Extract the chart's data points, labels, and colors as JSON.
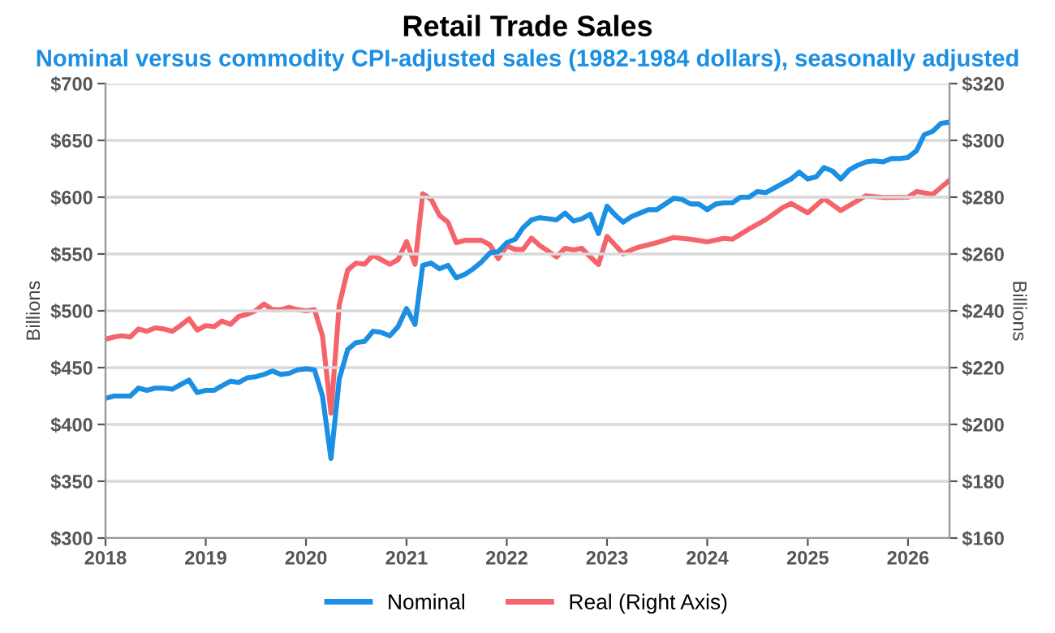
{
  "chart_data": {
    "type": "line",
    "title": "Retail Trade Sales",
    "subtitle": "Nominal versus commodity CPI-adjusted sales (1982-1984 dollars), seasonally adjusted",
    "ylabel": "Billions",
    "y2label": "Billions",
    "xlim": [
      "2018-01",
      "2026-06"
    ],
    "xticks": [
      {
        "value": "2018-01",
        "label": "2018"
      },
      {
        "value": "2019-01",
        "label": "2019"
      },
      {
        "value": "2020-01",
        "label": "2020"
      },
      {
        "value": "2021-01",
        "label": "2021"
      },
      {
        "value": "2022-01",
        "label": "2022"
      },
      {
        "value": "2023-01",
        "label": "2023"
      },
      {
        "value": "2024-01",
        "label": "2024"
      },
      {
        "value": "2025-01",
        "label": "2025"
      },
      {
        "value": "2026-01",
        "label": "2026"
      }
    ],
    "ylim": [
      300,
      700
    ],
    "yticks": [
      {
        "value": 300,
        "label": "$300"
      },
      {
        "value": 350,
        "label": "$350"
      },
      {
        "value": 400,
        "label": "$400"
      },
      {
        "value": 450,
        "label": "$450"
      },
      {
        "value": 500,
        "label": "$500"
      },
      {
        "value": 550,
        "label": "$550"
      },
      {
        "value": 600,
        "label": "$600"
      },
      {
        "value": 650,
        "label": "$650"
      },
      {
        "value": 700,
        "label": "$700"
      }
    ],
    "y2lim": [
      160,
      320
    ],
    "y2ticks": [
      {
        "value": 160,
        "label": "$160"
      },
      {
        "value": 180,
        "label": "$180"
      },
      {
        "value": 200,
        "label": "$200"
      },
      {
        "value": 220,
        "label": "$220"
      },
      {
        "value": 240,
        "label": "$240"
      },
      {
        "value": 260,
        "label": "$260"
      },
      {
        "value": 280,
        "label": "$280"
      },
      {
        "value": 300,
        "label": "$300"
      },
      {
        "value": 320,
        "label": "$320"
      }
    ],
    "grid": "y",
    "legend": "bottom",
    "line_style": "solid",
    "marker": "none",
    "series": [
      {
        "name": "Nominal",
        "color": "#1a8fe3",
        "x": [
          "2018-01",
          "2018-02",
          "2018-03",
          "2018-04",
          "2018-05",
          "2018-06",
          "2018-07",
          "2018-08",
          "2018-09",
          "2018-10",
          "2018-11",
          "2018-12",
          "2019-01",
          "2019-02",
          "2019-03",
          "2019-04",
          "2019-05",
          "2019-06",
          "2019-07",
          "2019-08",
          "2019-09",
          "2019-10",
          "2019-11",
          "2019-12",
          "2020-01",
          "2020-02",
          "2020-03",
          "2020-04",
          "2020-05",
          "2020-06",
          "2020-07",
          "2020-08",
          "2020-09",
          "2020-10",
          "2020-11",
          "2020-12",
          "2021-01",
          "2021-02",
          "2021-03",
          "2021-04",
          "2021-05",
          "2021-06",
          "2021-07",
          "2021-08",
          "2021-09",
          "2021-10",
          "2021-11",
          "2021-12",
          "2022-01",
          "2022-02",
          "2022-03",
          "2022-04",
          "2022-05",
          "2022-06",
          "2022-07",
          "2022-08",
          "2022-09",
          "2022-10",
          "2022-11",
          "2022-12",
          "2023-01",
          "2023-02",
          "2023-03",
          "2023-04",
          "2023-05",
          "2023-06",
          "2023-07",
          "2023-08",
          "2023-09",
          "2023-10",
          "2023-11",
          "2023-12",
          "2024-01",
          "2024-02",
          "2024-03",
          "2024-04",
          "2024-05",
          "2024-06",
          "2024-07",
          "2024-08",
          "2024-09",
          "2024-10",
          "2024-11",
          "2024-12",
          "2025-01",
          "2025-02",
          "2025-03",
          "2025-04",
          "2025-05",
          "2025-06",
          "2025-07",
          "2025-08",
          "2025-09",
          "2025-10",
          "2025-11",
          "2025-12",
          "2026-01",
          "2026-02",
          "2026-03",
          "2026-04",
          "2026-05",
          "2026-06"
        ],
        "values": [
          423,
          425,
          425,
          425,
          432,
          430,
          432,
          432,
          431,
          435,
          439,
          428,
          430,
          430,
          434,
          438,
          437,
          441,
          442,
          444,
          447,
          444,
          445,
          448,
          449,
          448,
          425,
          370,
          440,
          466,
          472,
          473,
          482,
          481,
          478,
          486,
          502,
          488,
          540,
          542,
          537,
          540,
          529,
          532,
          537,
          543,
          551,
          552,
          560,
          563,
          573,
          580,
          582,
          581,
          580,
          586,
          579,
          581,
          585,
          568,
          592,
          584,
          578,
          583,
          586,
          589,
          589,
          594,
          599,
          598,
          594,
          594,
          589,
          594,
          595,
          595,
          600,
          600,
          605,
          604,
          608,
          612,
          616,
          622,
          616,
          618,
          626,
          623,
          616,
          624,
          628,
          631,
          632,
          631,
          634,
          634,
          635,
          641,
          655,
          658,
          665,
          666
        ]
      },
      {
        "name": "Real (Right Axis)",
        "color": "#f4646a",
        "axis": "y2",
        "x": [
          "2018-01",
          "2018-02",
          "2018-03",
          "2018-04",
          "2018-05",
          "2018-06",
          "2018-07",
          "2018-08",
          "2018-09",
          "2018-10",
          "2018-11",
          "2018-12",
          "2019-01",
          "2019-02",
          "2019-03",
          "2019-04",
          "2019-05",
          "2019-06",
          "2019-07",
          "2019-08",
          "2019-09",
          "2019-10",
          "2019-11",
          "2019-12",
          "2020-01",
          "2020-02",
          "2020-03",
          "2020-04",
          "2020-05",
          "2020-06",
          "2020-07",
          "2020-08",
          "2020-09",
          "2020-10",
          "2020-11",
          "2020-12",
          "2021-01",
          "2021-02",
          "2021-03",
          "2021-04",
          "2021-05",
          "2021-06",
          "2021-07",
          "2021-08",
          "2021-09",
          "2021-10",
          "2021-11",
          "2021-12",
          "2022-01",
          "2022-02",
          "2022-03",
          "2022-04",
          "2022-05",
          "2022-06",
          "2022-07",
          "2022-08",
          "2022-09",
          "2022-10",
          "2022-11",
          "2022-12",
          "2023-01",
          "2023-02",
          "2023-03",
          "2023-04",
          "2023-05",
          "2023-07",
          "2023-09",
          "2023-11",
          "2024-01",
          "2024-03",
          "2024-04",
          "2024-06",
          "2024-08",
          "2024-10",
          "2024-11",
          "2025-01",
          "2025-03",
          "2025-05",
          "2025-08",
          "2025-10",
          "2026-01",
          "2026-02",
          "2026-04",
          "2026-06"
        ],
        "values": [
          230,
          230.8,
          231.2,
          230.8,
          233.6,
          232.8,
          234,
          233.6,
          232.8,
          234.8,
          237.2,
          233.2,
          234.8,
          234.4,
          236.4,
          235.2,
          238,
          238.8,
          240,
          242.4,
          240.4,
          240.4,
          241.2,
          240.4,
          240,
          240.4,
          231.2,
          204,
          242,
          254.4,
          256.8,
          256.4,
          259.6,
          258,
          256.4,
          258,
          264.4,
          256.4,
          281.2,
          279.2,
          273.6,
          271.2,
          264,
          264.8,
          264.8,
          264.8,
          263.2,
          258.4,
          262.8,
          261.6,
          261.6,
          265.6,
          263,
          261,
          259,
          262,
          261.4,
          262,
          259,
          256.3,
          266.2,
          263,
          260,
          261.5,
          262.5,
          264,
          265.8,
          265.2,
          264.3,
          265.5,
          265.2,
          268.8,
          272.1,
          276.3,
          277.8,
          274.5,
          279.5,
          275.3,
          280.5,
          279.9,
          280,
          282,
          281,
          286
        ]
      }
    ]
  }
}
